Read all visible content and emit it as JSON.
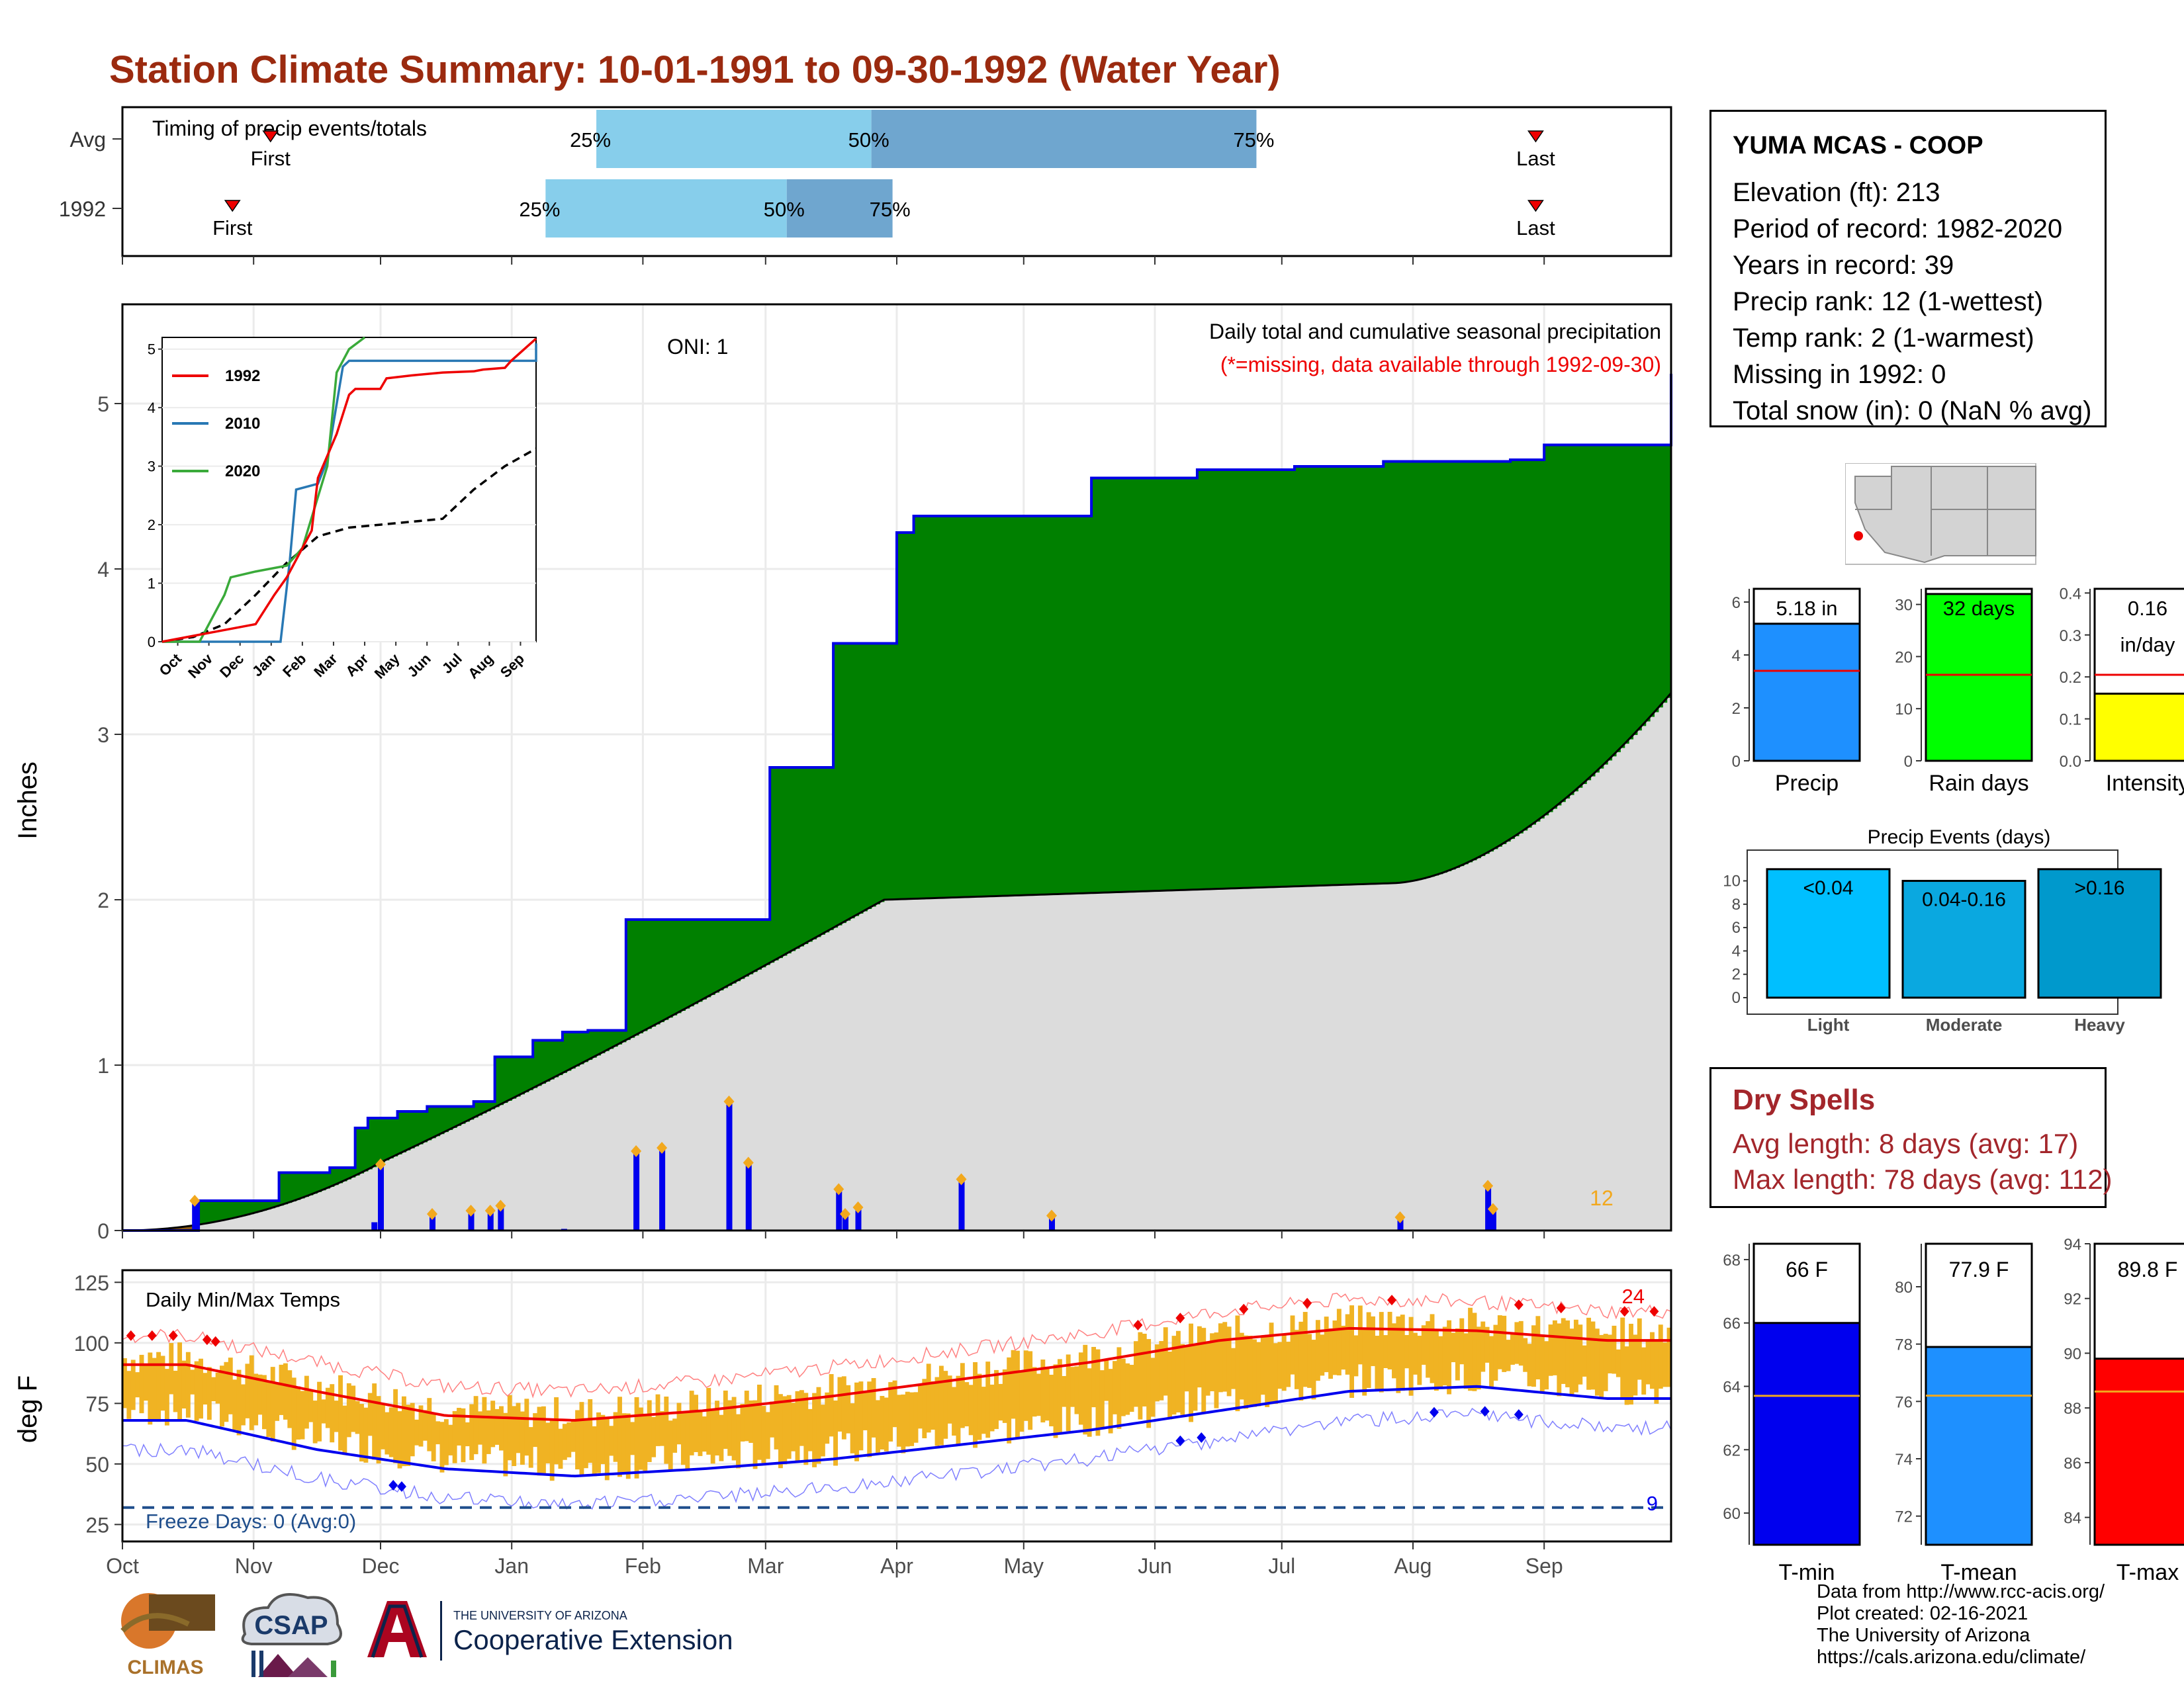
{
  "title": "Station Climate Summary: 10-01-1991 to 09-30-1992 (Water Year)",
  "station": {
    "name": "YUMA MCAS - COOP",
    "lines": [
      "Elevation (ft): 213",
      "Period of record: 1982-2020",
      "Years in record: 39",
      "Precip rank: 12 (1-wettest)",
      "Temp rank: 2 (1-warmest)",
      "Missing in 1992: 0",
      "Total snow (in): 0 (NaN % avg)"
    ]
  },
  "timing": {
    "title": "Timing of precip events/totals",
    "rows": [
      {
        "label": "Avg",
        "first": "First",
        "last": "Last",
        "p25": "25%",
        "p50": "50%",
        "p75": "75%",
        "first_day": 35,
        "last_day": 334,
        "d25": 112,
        "d50": 177,
        "d75": 268
      },
      {
        "label": "1992",
        "first": "First",
        "last": "Last",
        "p25": "25%",
        "p50": "50%",
        "p75": "75%",
        "first_day": 26,
        "last_day": 334,
        "d25": 100,
        "d50": 157,
        "d75": 182
      }
    ]
  },
  "main_chart": {
    "ylabel": "Inches",
    "yticks": [
      "0",
      "1",
      "2",
      "3",
      "4",
      "5"
    ],
    "oni": "ONI: 1",
    "label1": "Daily total and cumulative seasonal precipitation",
    "label2": "(*=missing, data available through 1992-09-30)",
    "events_count": "12"
  },
  "inset": {
    "legend": [
      "1992",
      "2010",
      "2020"
    ],
    "yticks": [
      "0",
      "1",
      "2",
      "3",
      "4",
      "5"
    ],
    "xticks": [
      "Oct",
      "Nov",
      "Dec",
      "Jan",
      "Feb",
      "Mar",
      "Apr",
      "May",
      "Jun",
      "Jul",
      "Aug",
      "Sep"
    ]
  },
  "temp_chart": {
    "ylabel": "deg F",
    "title": "Daily Min/Max Temps",
    "yticks": [
      "25",
      "50",
      "75",
      "100",
      "125"
    ],
    "xticks": [
      "Oct",
      "Nov",
      "Dec",
      "Jan",
      "Feb",
      "Mar",
      "Apr",
      "May",
      "Jun",
      "Jul",
      "Aug",
      "Sep"
    ],
    "freeze": "Freeze Days: 0 (Avg:0)",
    "hot_count": "24",
    "cold_count": "9"
  },
  "bars_top": {
    "precip": {
      "label": "Precip",
      "value_text": "5.18 in",
      "value": 5.18,
      "avg": 3.4,
      "yticks": [
        "0",
        "2",
        "4",
        "6"
      ],
      "max": 6.5
    },
    "raindays": {
      "label": "Rain days",
      "value_text": "32 days",
      "value": 32,
      "avg": 16.5,
      "yticks": [
        "0",
        "10",
        "20",
        "30"
      ],
      "max": 33
    },
    "intensity": {
      "label": "Intensity",
      "value_text": "0.16",
      "value_text2": "in/day",
      "value": 0.16,
      "avg": 0.205,
      "yticks": [
        "0.0",
        "0.1",
        "0.2",
        "0.3",
        "0.4"
      ],
      "max": 0.41
    }
  },
  "events": {
    "title": "Precip Events (days)",
    "yticks": [
      "0",
      "2",
      "4",
      "6",
      "8",
      "10"
    ],
    "bars": [
      {
        "cat": "Light",
        "label": "<0.04",
        "value": 11,
        "color": "#00bfff"
      },
      {
        "cat": "Moderate",
        "label": "0.04-0.16",
        "value": 10,
        "color": "#0aa8e0"
      },
      {
        "cat": "Heavy",
        "label": ">0.16",
        "value": 11,
        "color": "#0099cc"
      }
    ]
  },
  "dry_spells": {
    "title": "Dry Spells",
    "avg": "Avg length: 8 days (avg: 17)",
    "max": "Max length: 78 days (avg: 112)"
  },
  "temp_bars": {
    "tmin": {
      "label": "T-min",
      "value_text": "66 F",
      "value": 66,
      "avg": 63.7,
      "color": "#0000ee",
      "yticks": [
        "60",
        "62",
        "64",
        "66",
        "68"
      ],
      "ymin": 59,
      "ymax": 68.5
    },
    "tmean": {
      "label": "T-mean",
      "value_text": "77.9 F",
      "value": 77.9,
      "avg": 76.2,
      "color": "#1e90ff",
      "yticks": [
        "72",
        "74",
        "76",
        "78",
        "80"
      ],
      "ymin": 71,
      "ymax": 81.5
    },
    "tmax": {
      "label": "T-max",
      "value_text": "89.8 F",
      "value": 89.8,
      "avg": 88.6,
      "color": "#ff0000",
      "yticks": [
        "84",
        "86",
        "88",
        "90",
        "92",
        "94"
      ],
      "ymin": 83,
      "ymax": 94
    }
  },
  "credits": [
    "Data from http://www.rcc-acis.org/",
    "Plot created: 02-16-2021",
    "The University of Arizona",
    "https://cals.arizona.edu/climate/"
  ],
  "logos": {
    "climas": "CLIMAS",
    "csap": "CSAP",
    "ua_small": "THE UNIVERSITY OF ARIZONA",
    "ua_big": "Cooperative Extension"
  },
  "chart_data": [
    {
      "type": "area",
      "title": "Daily total and cumulative seasonal precipitation",
      "ylabel": "Inches",
      "ylim": [
        0,
        5.6
      ],
      "cumulative_1992": [
        [
          0,
          0
        ],
        [
          56,
          0.18
        ],
        [
          120,
          0.35
        ],
        [
          160,
          0.38
        ],
        [
          180,
          0.62
        ],
        [
          190,
          0.68
        ],
        [
          210,
          0.72
        ],
        [
          235,
          0.75
        ],
        [
          265,
          0.75
        ],
        [
          270,
          0.78
        ],
        [
          286,
          1.05
        ],
        [
          315,
          1.15
        ],
        [
          340,
          1.2
        ],
        [
          360,
          1.21
        ],
        [
          388,
          1.82
        ],
        [
          389,
          1.88
        ],
        [
          410,
          1.88
        ],
        [
          460,
          1.88
        ],
        [
          500,
          2.8
        ],
        [
          520,
          2.8
        ],
        [
          550,
          3.55
        ],
        [
          580,
          3.55
        ],
        [
          600,
          4.22
        ],
        [
          610,
          4.32
        ],
        [
          640,
          4.32
        ],
        [
          690,
          4.32
        ],
        [
          750,
          4.55
        ],
        [
          830,
          4.6
        ],
        [
          906,
          4.62
        ],
        [
          950,
          4.62
        ],
        [
          975,
          4.65
        ],
        [
          1074,
          4.66
        ],
        [
          1100,
          4.75
        ],
        [
          1200,
          5.18
        ]
      ],
      "daily_events": [
        [
          56,
          0.18
        ],
        [
          195,
          0.05
        ],
        [
          200,
          0.4
        ],
        [
          240,
          0.1
        ],
        [
          270,
          0.12
        ],
        [
          285,
          0.12
        ],
        [
          293,
          0.15
        ],
        [
          342,
          0.01
        ],
        [
          398,
          0.48
        ],
        [
          418,
          0.5
        ],
        [
          470,
          0.78
        ],
        [
          485,
          0.41
        ],
        [
          555,
          0.25
        ],
        [
          560,
          0.1
        ],
        [
          570,
          0.14
        ],
        [
          650,
          0.31
        ],
        [
          720,
          0.09
        ],
        [
          990,
          0.08
        ],
        [
          1058,
          0.27
        ],
        [
          1062,
          0.13
        ]
      ]
    },
    {
      "type": "line",
      "title": "Daily Min/Max Temps",
      "ylabel": "deg F",
      "ylim": [
        20,
        130
      ],
      "x": [
        "Oct",
        "Nov",
        "Dec",
        "Jan",
        "Feb",
        "Mar",
        "Apr",
        "May",
        "Jun",
        "Jul",
        "Aug",
        "Sep"
      ],
      "series": [
        {
          "name": "avg max",
          "values": [
            91,
            80,
            70,
            68,
            72,
            78,
            85,
            92,
            101,
            106,
            105,
            101
          ]
        },
        {
          "name": "avg min",
          "values": [
            68,
            56,
            48,
            45,
            48,
            52,
            58,
            64,
            72,
            80,
            82,
            77
          ]
        }
      ]
    }
  ]
}
